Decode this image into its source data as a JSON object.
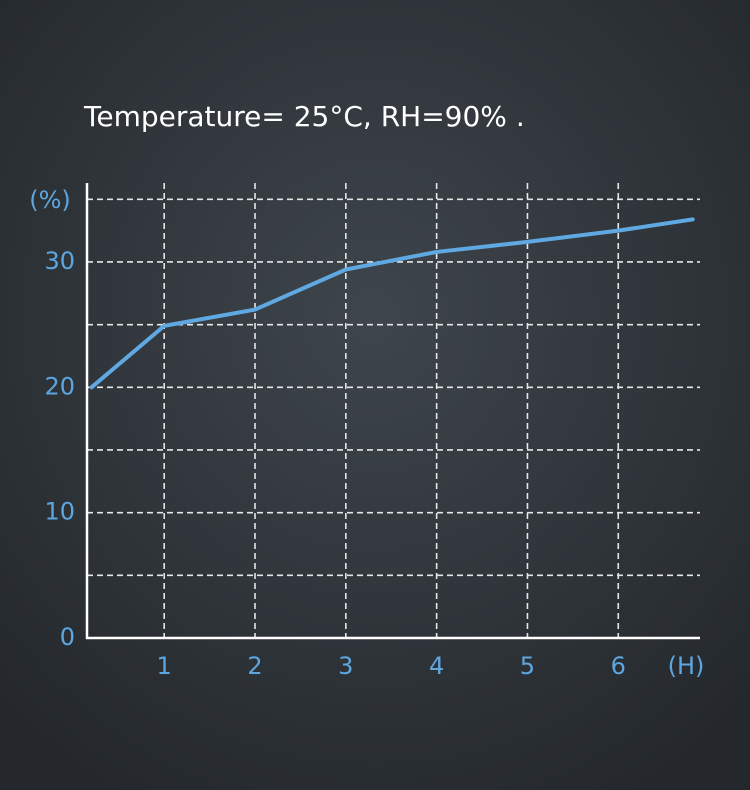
{
  "chart_data": {
    "type": "line",
    "title": "Temperature= 25°C, RH=90% .",
    "y_label": "(%)",
    "x_label": "(H)",
    "x": [
      0.2,
      1,
      2,
      3,
      4,
      5,
      6,
      6.82
    ],
    "series": [
      {
        "color": "#5fa8e2",
        "values": [
          20,
          24.9,
          26.2,
          29.4,
          30.8,
          31.6,
          32.5,
          33.4
        ]
      }
    ],
    "xlim": [
      0.15,
      6.9
    ],
    "ylim": [
      0,
      36.3
    ],
    "xticks": [
      1,
      2,
      3,
      4,
      5,
      6
    ],
    "yticks": [
      0,
      10,
      20,
      30
    ],
    "y_minor_grid": [
      5,
      15,
      25,
      35
    ],
    "grid": true
  }
}
